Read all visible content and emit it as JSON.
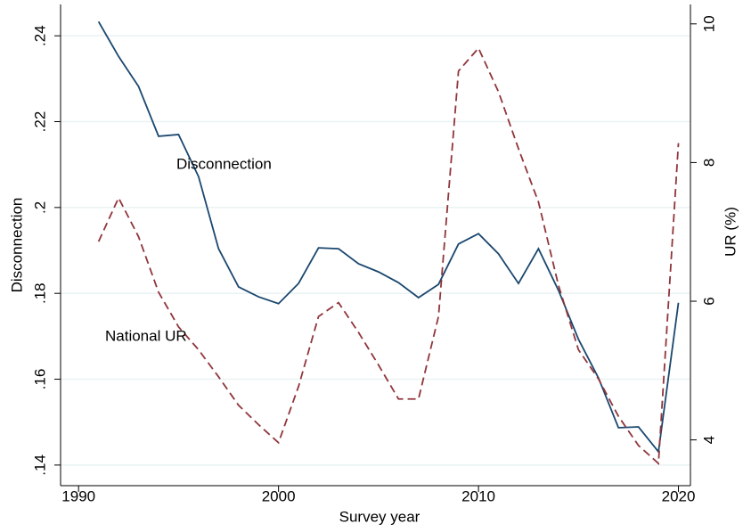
{
  "chart_data": {
    "type": "line",
    "x_label": "Survey year",
    "y_label": "Disconnection",
    "y2_label": "UR (%)",
    "annotations": [
      "Disconnection",
      "National UR"
    ],
    "x": [
      1991,
      1992,
      1993,
      1994,
      1995,
      1996,
      1997,
      1998,
      1999,
      2000,
      2001,
      2002,
      2003,
      2004,
      2005,
      2006,
      2007,
      2008,
      2009,
      2010,
      2011,
      2012,
      2013,
      2014,
      2015,
      2016,
      2017,
      2018,
      2019,
      2020
    ],
    "series": [
      {
        "name": "Disconnection",
        "color": "#1a476f",
        "dash": false,
        "values": [
          0.2433,
          0.2352,
          0.2282,
          0.2166,
          0.217,
          0.2072,
          0.1904,
          0.1815,
          0.1792,
          0.1776,
          0.1823,
          0.1906,
          0.1904,
          0.1869,
          0.185,
          0.1825,
          0.179,
          0.1821,
          0.1915,
          0.1939,
          0.1892,
          0.1823,
          0.1904,
          0.1807,
          0.1693,
          0.1603,
          0.1487,
          0.1489,
          0.1431,
          0.1778
        ]
      },
      {
        "name": "National UR",
        "color": "#90353b",
        "dash": true,
        "axis": "y2",
        "values": [
          6.86,
          7.49,
          6.93,
          6.13,
          5.63,
          5.3,
          4.91,
          4.5,
          4.22,
          3.96,
          4.77,
          5.78,
          5.98,
          5.55,
          5.08,
          4.59,
          4.59,
          5.78,
          9.32,
          9.65,
          9.02,
          8.2,
          7.43,
          6.23,
          5.3,
          4.88,
          4.34,
          3.92,
          3.66,
          8.28
        ]
      }
    ],
    "xlim": [
      1989.1,
      2020.6
    ],
    "xticks": [
      1990,
      2000,
      2010,
      2020
    ],
    "ylim": [
      0.1352,
      0.2473
    ],
    "yticks": [
      {
        "value": 0.14,
        "label": ".14"
      },
      {
        "value": 0.16,
        "label": ".16"
      },
      {
        "value": 0.18,
        "label": ".18"
      },
      {
        "value": 0.2,
        "label": ".2"
      },
      {
        "value": 0.22,
        "label": ".22"
      },
      {
        "value": 0.24,
        "label": ".24"
      }
    ],
    "y2lim": [
      3.34,
      10.28
    ],
    "y2ticks": [
      4,
      6,
      8,
      10
    ],
    "grid": true
  }
}
